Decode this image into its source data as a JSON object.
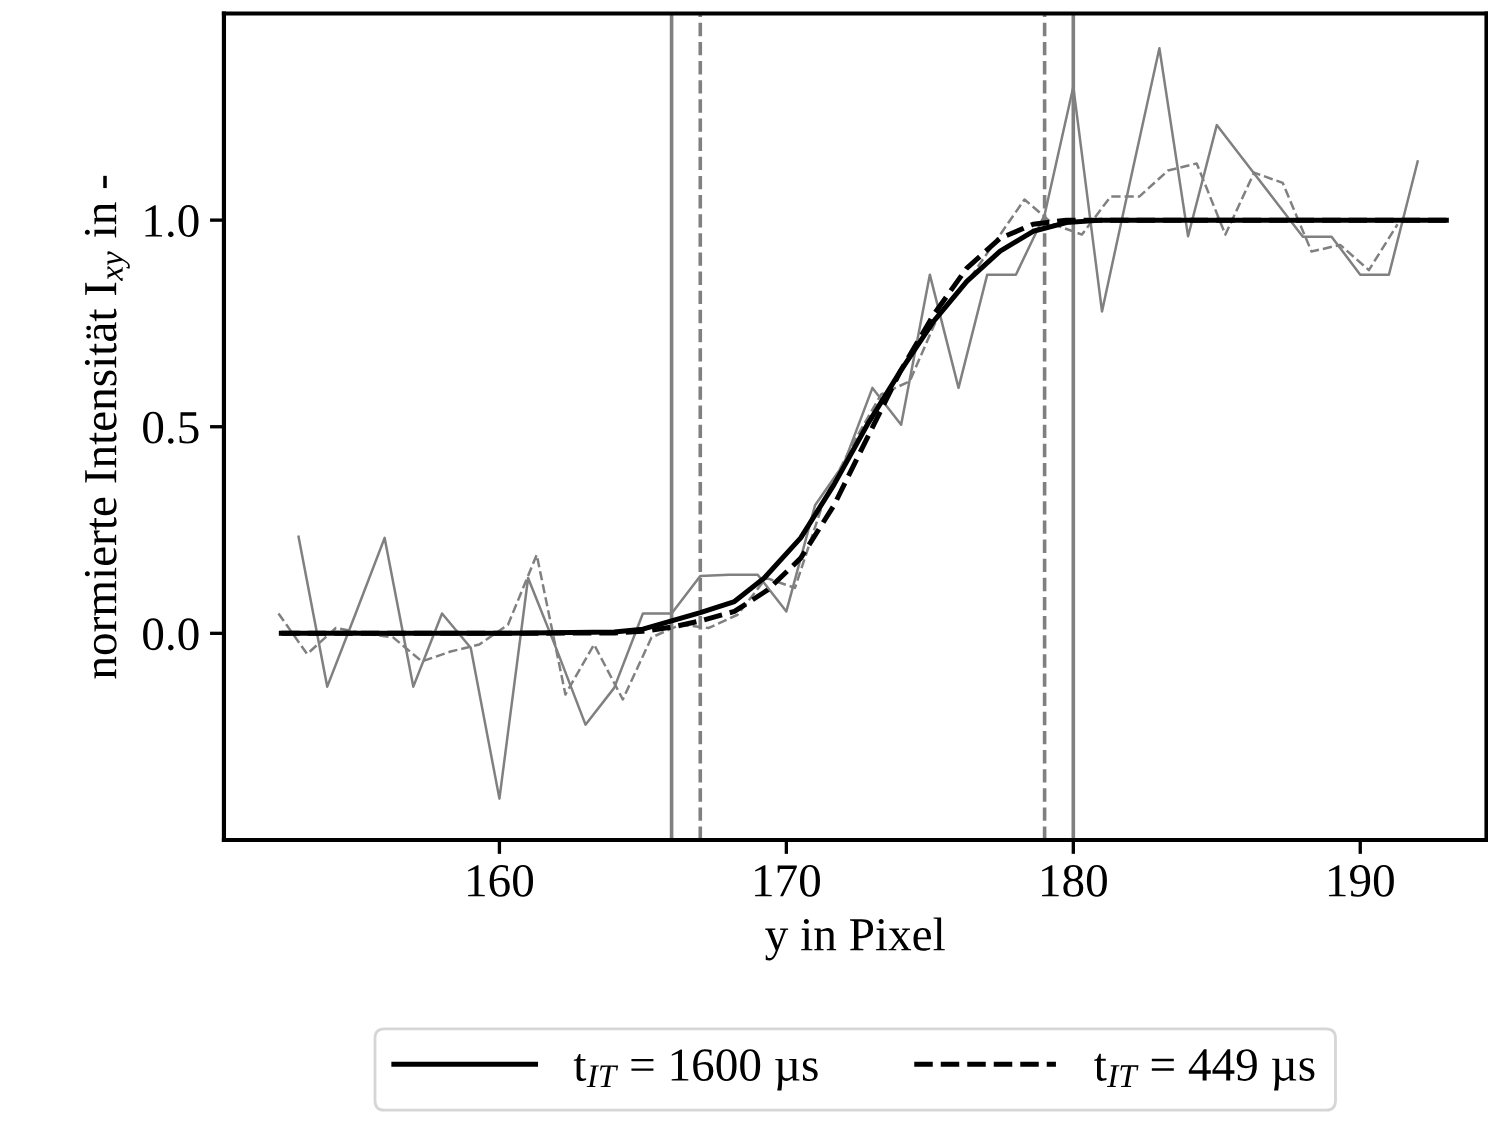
{
  "chart_data": {
    "type": "line",
    "xlabel": "y in Pixel",
    "ylabel": "normierte Intensität I$_{xy}$ in -",
    "xlim": [
      150.4,
      194.4
    ],
    "ylim": [
      -0.5,
      1.5
    ],
    "xticks": [
      160,
      170,
      180,
      190
    ],
    "yticks": [
      {
        "value": 0,
        "label": "0.0"
      },
      {
        "value": 0.5,
        "label": "0.5"
      },
      {
        "value": 1,
        "label": "1.0"
      }
    ],
    "grid": false,
    "legend": "bottom",
    "marker": "none",
    "series": [
      {
        "color": "#808080",
        "line_style": "solid",
        "x": [
          153,
          154,
          155,
          156,
          157,
          158,
          159,
          160,
          161,
          162,
          163,
          164,
          165,
          166,
          167,
          168,
          169,
          170,
          171,
          172,
          173,
          174,
          175,
          176,
          177,
          178,
          179,
          180,
          181,
          182,
          183,
          184,
          185,
          186,
          187,
          188,
          189,
          190,
          191,
          192
        ],
        "values": [
          0.234,
          -0.129,
          0.05,
          0.231,
          -0.129,
          0.048,
          -0.035,
          -0.4,
          0.134,
          -0.04,
          -0.221,
          -0.132,
          0.048,
          0.048,
          0.139,
          0.142,
          0.142,
          0.053,
          0.31,
          0.41,
          0.594,
          0.505,
          0.868,
          0.594,
          0.868,
          0.868,
          1.013,
          1.323,
          0.779,
          1.1,
          1.416,
          0.961,
          1.23,
          1.14,
          1.05,
          0.96,
          0.96,
          0.868,
          0.868,
          1.142
        ]
      },
      {
        "color": "#808080",
        "line_style": "dashed",
        "x": [
          152.3,
          153.3,
          154.3,
          155.3,
          156.3,
          157.3,
          158.3,
          159.3,
          160.3,
          161.3,
          162.3,
          163.3,
          164.3,
          165.3,
          166.3,
          167.3,
          168.3,
          169.3,
          170.3,
          171.3,
          172.3,
          173.3,
          174.3,
          175.3,
          176.3,
          177.3,
          178.3,
          179.3,
          180.3,
          181.3,
          182.3,
          183.3,
          184.3,
          185.3,
          186.3,
          187.3,
          188.3,
          189.3,
          190.3,
          191.3
        ],
        "values": [
          0.048,
          -0.05,
          0.013,
          0.0,
          -0.01,
          -0.068,
          -0.044,
          -0.027,
          0.021,
          0.19,
          -0.148,
          -0.027,
          -0.16,
          -0.01,
          0.021,
          0.013,
          0.045,
          0.134,
          0.11,
          0.32,
          0.457,
          0.578,
          0.61,
          0.77,
          0.85,
          0.95,
          1.05,
          0.99,
          0.965,
          1.057,
          1.057,
          1.12,
          1.137,
          0.965,
          1.115,
          1.09,
          0.924,
          0.94,
          0.879,
          0.99
        ]
      },
      {
        "name": "t$_{IT}$ = 1600 µs",
        "color": "#000000",
        "line_style": "solid",
        "x": [
          152.4,
          160,
          164,
          165,
          166,
          167,
          168.19,
          169.23,
          170.5,
          171.66,
          172.82,
          173.97,
          175.13,
          176.29,
          177.45,
          178.6,
          179.76,
          181,
          183,
          193
        ],
        "values": [
          0,
          0,
          0.003,
          0.01,
          0.03,
          0.05,
          0.077,
          0.134,
          0.231,
          0.36,
          0.505,
          0.634,
          0.755,
          0.852,
          0.925,
          0.973,
          0.994,
          1.0,
          1.0,
          1.0
        ]
      },
      {
        "name": "t$_{IT}$ = 449 µs",
        "color": "#000000",
        "line_style": "dashed",
        "x": [
          152.4,
          160,
          164,
          165,
          166,
          167,
          168.19,
          169.35,
          170.5,
          171.66,
          172.82,
          173.97,
          175.13,
          176.29,
          177.45,
          178.6,
          179.76,
          181,
          183,
          193
        ],
        "values": [
          0,
          0,
          0.001,
          0.005,
          0.015,
          0.03,
          0.053,
          0.105,
          0.182,
          0.31,
          0.473,
          0.634,
          0.771,
          0.884,
          0.956,
          0.99,
          1.0,
          1.0,
          1.0,
          1.0
        ]
      }
    ],
    "ref_lines": [
      {
        "axis": "x",
        "value": 166,
        "color": "#808080",
        "line_style": "solid"
      },
      {
        "axis": "x",
        "value": 180,
        "color": "#808080",
        "line_style": "solid"
      },
      {
        "axis": "x",
        "value": 167,
        "color": "#808080",
        "line_style": "dashed"
      },
      {
        "axis": "x",
        "value": 179,
        "color": "#808080",
        "line_style": "dashed"
      }
    ]
  }
}
